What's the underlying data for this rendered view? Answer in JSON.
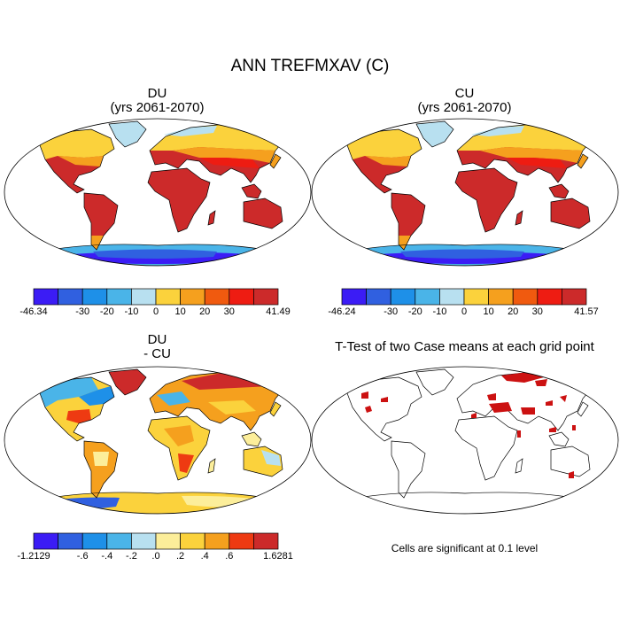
{
  "title": "ANN TREFMXAV (C)",
  "colors": {
    "levels": [
      "#3b1cf5",
      "#3060e0",
      "#1e90e8",
      "#4ab4e8",
      "#b8e0f0",
      "#fbd23c",
      "#f5a01e",
      "#f05a0f",
      "#ee1c12",
      "#cc2a2a"
    ],
    "diff_levels": [
      "#3b1cf5",
      "#3060e0",
      "#1e90e8",
      "#4ab4e8",
      "#b8e0f0",
      "#fcee9a",
      "#fbd23c",
      "#f5a01e",
      "#ee3a12",
      "#cc2a2a"
    ],
    "ttest": "#cc1111"
  },
  "panels": [
    {
      "id": "du",
      "title_line1": "DU",
      "title_line2": "(yrs 2061-2070)",
      "colorbar": {
        "labels": [
          "-46.34",
          "-30",
          "-20",
          "-10",
          "0",
          "10",
          "20",
          "30",
          "41.49"
        ]
      }
    },
    {
      "id": "cu",
      "title_line1": "CU",
      "title_line2": "(yrs 2061-2070)",
      "colorbar": {
        "labels": [
          "-46.24",
          "-30",
          "-20",
          "-10",
          "0",
          "10",
          "20",
          "30",
          "41.57"
        ]
      }
    },
    {
      "id": "diff",
      "title_line1": "DU",
      "title_line2": "- CU",
      "colorbar": {
        "labels": [
          "-1.2129",
          "-.6",
          "-.4",
          "-.2",
          ".0",
          ".2",
          ".4",
          ".6",
          "1.6281"
        ]
      }
    },
    {
      "id": "ttest",
      "title_line1": "T-Test of two Case means at each grid point",
      "note": "Cells are significant at 0.1 level"
    }
  ]
}
